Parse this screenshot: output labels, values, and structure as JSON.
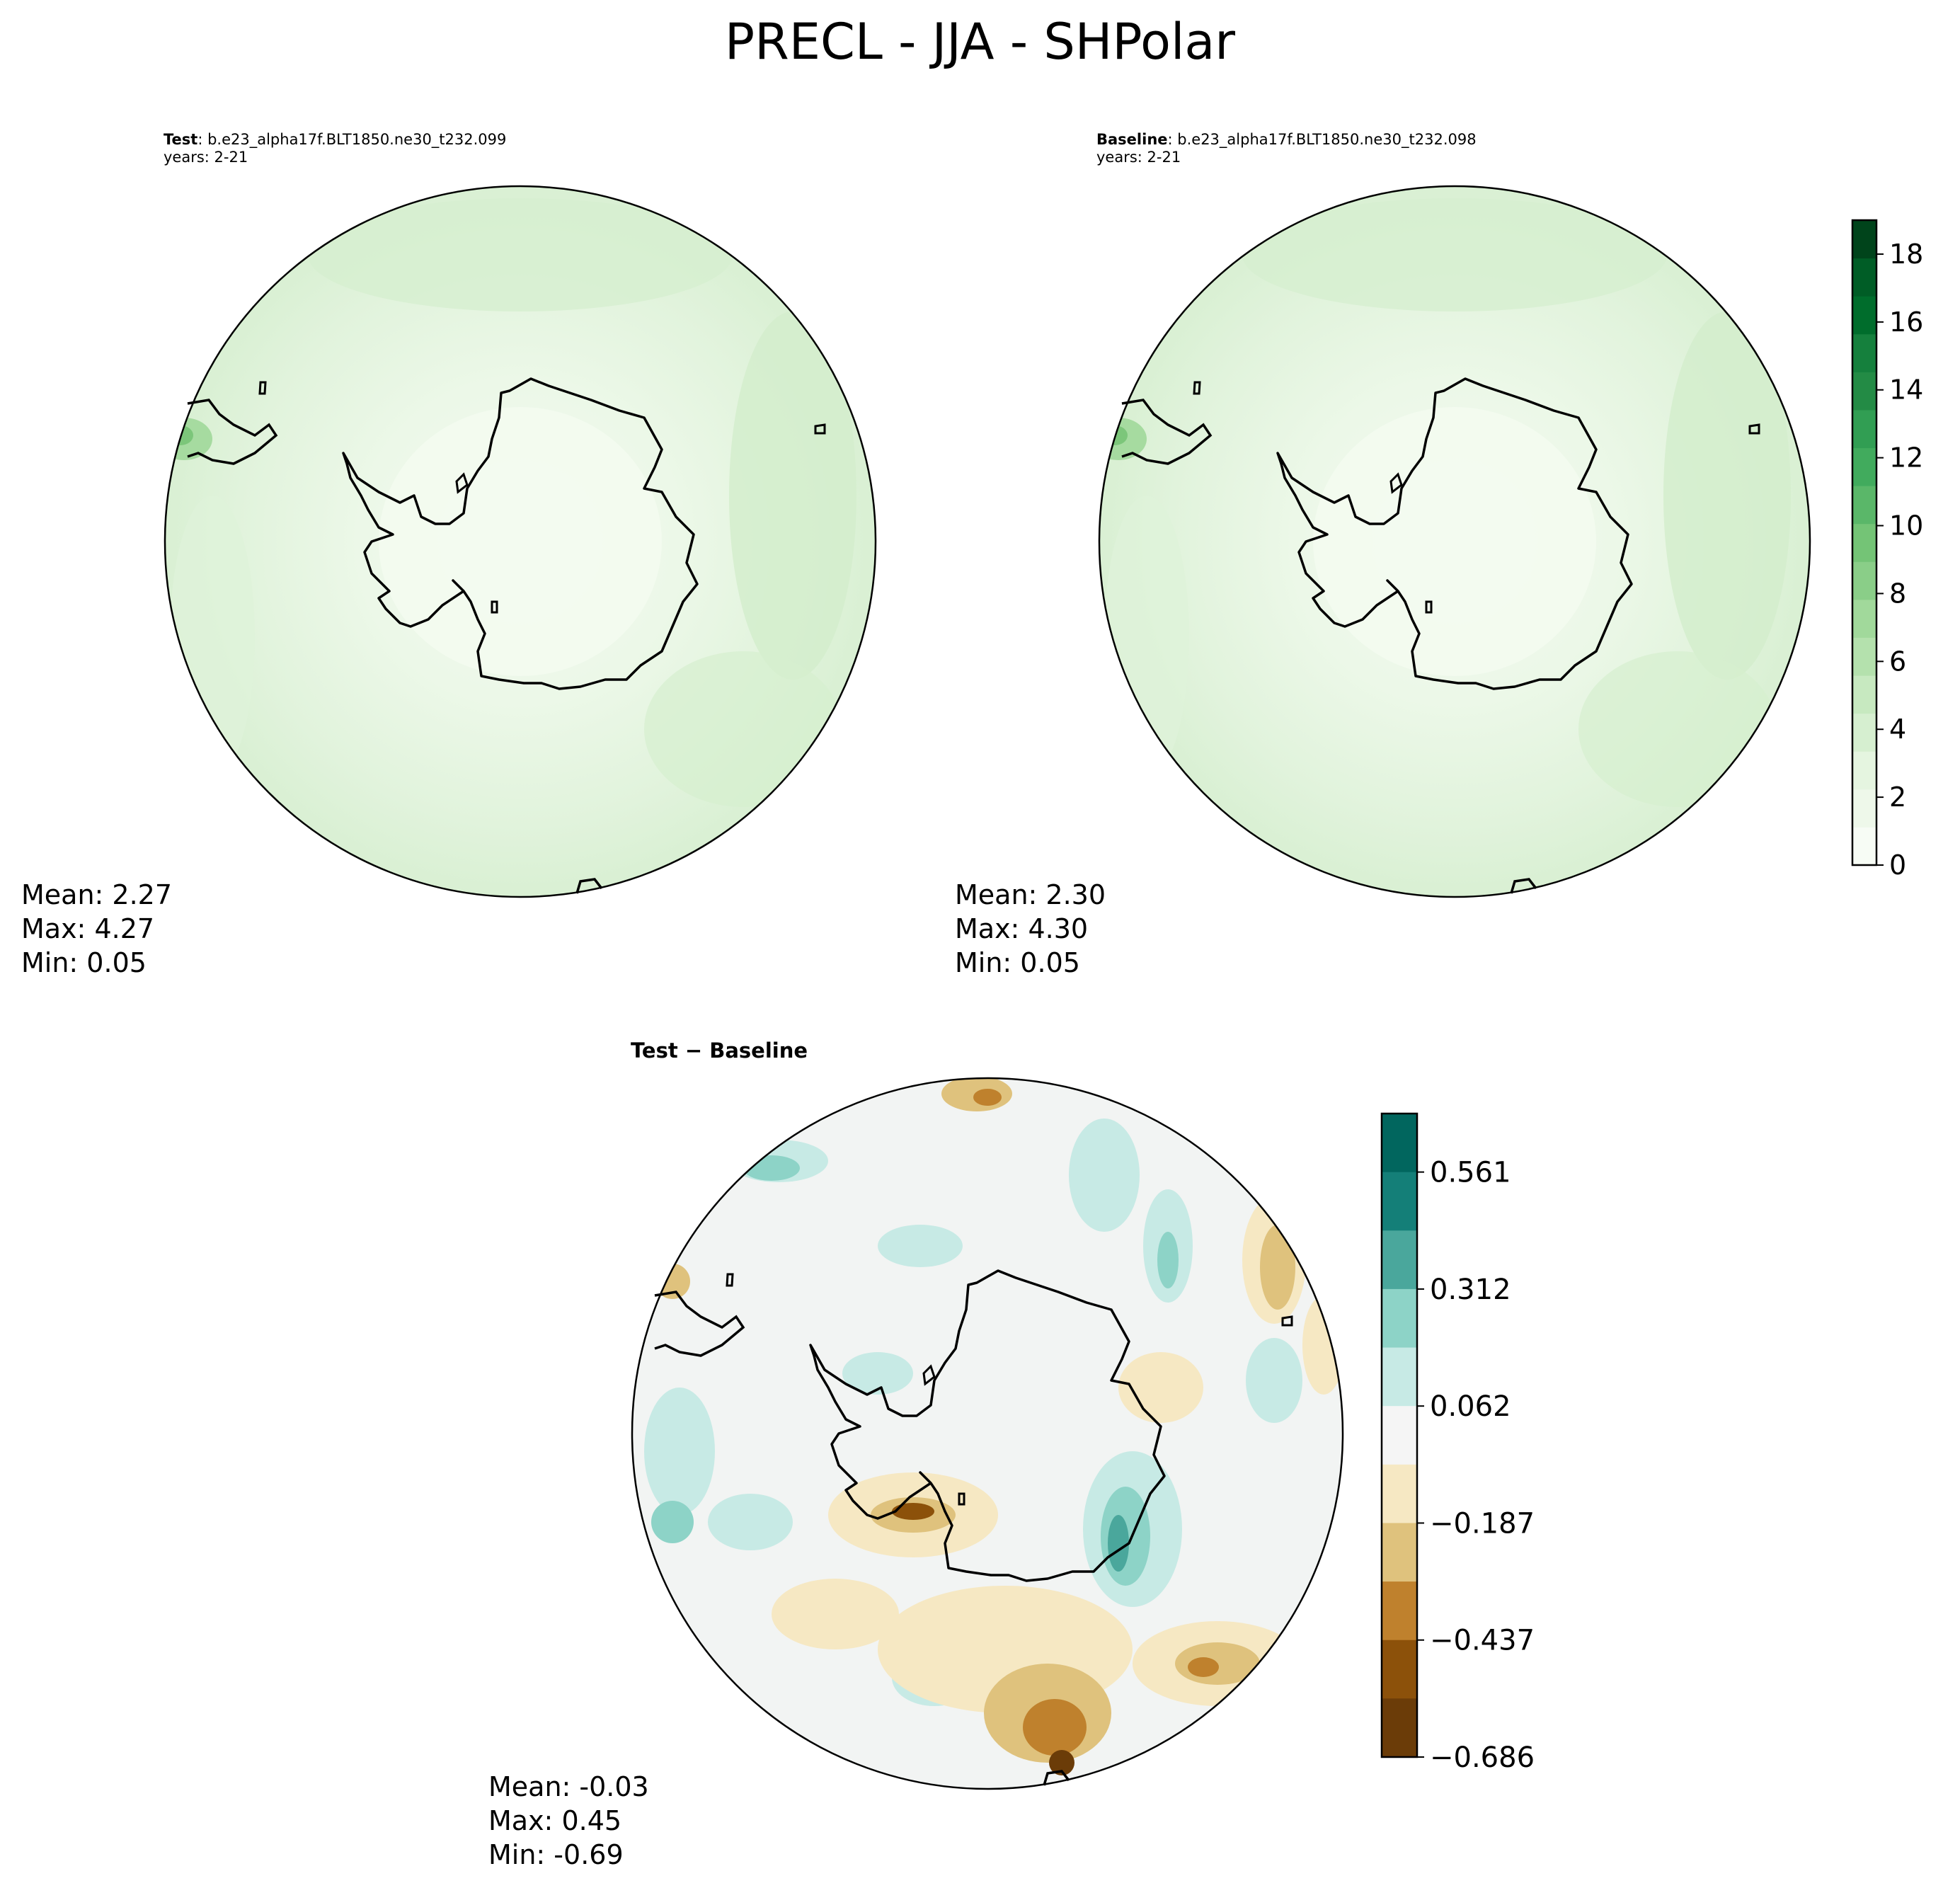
{
  "figure": {
    "title": "PRECL - JJA - SHPolar"
  },
  "panels": {
    "test": {
      "label": "Test",
      "case": ": b.e23_alpha17f.BLT1850.ne30_t232.099",
      "years": "years: 2-21",
      "stats": {
        "mean": "Mean:  2.27",
        "max": "Max:  4.27",
        "min": "Min:  0.05"
      }
    },
    "baseline": {
      "label": "Baseline",
      "case": ": b.e23_alpha17f.BLT1850.ne30_t232.098",
      "years": "years: 2-21",
      "stats": {
        "mean": "Mean:  2.30",
        "max": "Max:  4.30",
        "min": "Min:  0.05"
      }
    },
    "difference": {
      "title": "Test − Baseline",
      "stats": {
        "mean": "Mean: -0.03",
        "max": "Max:  0.45",
        "min": "Min: -0.69"
      }
    }
  },
  "colorbars": {
    "field": {
      "ticks": [
        "0",
        "2",
        "4",
        "6",
        "8",
        "10",
        "12",
        "14",
        "16",
        "18"
      ],
      "colors": [
        "#f7fcf5",
        "#eef8ea",
        "#e5f5e0",
        "#d6efd0",
        "#c7e9c0",
        "#b4e1ad",
        "#a1d99b",
        "#8ace88",
        "#74c476",
        "#5ab769",
        "#41ab5d",
        "#319e53",
        "#238b45",
        "#15803d",
        "#006d2c",
        "#005d26",
        "#00441b"
      ]
    },
    "difference": {
      "ticks": [
        "0.561",
        "0.312",
        "0.062",
        "−0.187",
        "−0.437",
        "−0.686"
      ],
      "colors": [
        "#01665e",
        "#147f78",
        "#4aa79c",
        "#8dd3c7",
        "#c7eae5",
        "#f5f5f5",
        "#f6e8c3",
        "#dfc27d",
        "#bf812d",
        "#8c510a",
        "#6b3c08"
      ]
    }
  },
  "map_colors": {
    "field_low": "#f1faee",
    "field_mid": "#e5f5e0",
    "field_high": "#d4eecd",
    "field_peak": "#9fd89a",
    "diff_neutral": "#f2f4f3",
    "diff_pos1": "#c7eae5",
    "diff_pos2": "#8dd3c7",
    "diff_pos3": "#4aa79c",
    "diff_neg1": "#f6e8c3",
    "diff_neg2": "#dfc27d",
    "diff_neg3": "#bf812d",
    "diff_neg4": "#8c510a",
    "coast": "#000000"
  }
}
